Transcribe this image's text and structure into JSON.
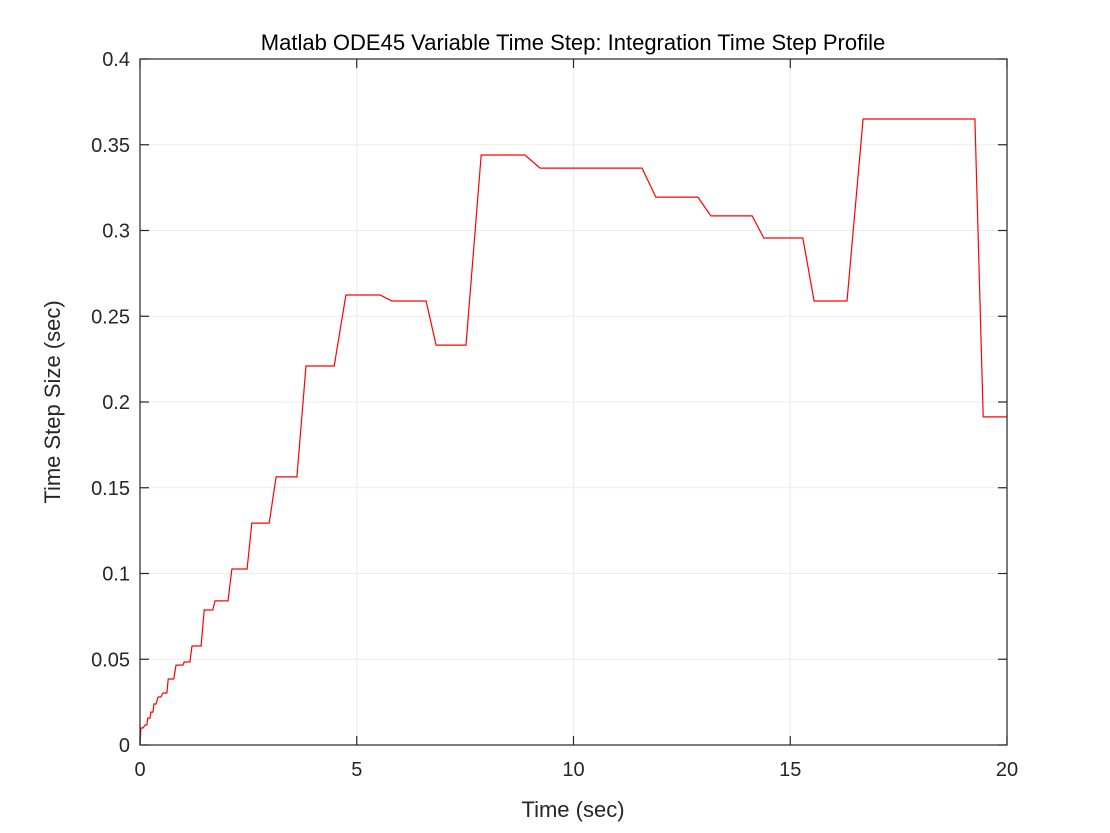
{
  "chart_data": {
    "type": "line",
    "title": "Matlab ODE45 Variable Time Step:  Integration Time Step Profile",
    "xlabel": "Time (sec)",
    "ylabel": "Time Step Size (sec)",
    "xlim": [
      0,
      20
    ],
    "ylim": [
      0,
      0.4
    ],
    "xticks": [
      0,
      5,
      10,
      15,
      20
    ],
    "xtick_labels": [
      "0",
      "5",
      "10",
      "15",
      "20"
    ],
    "yticks": [
      0,
      0.05,
      0.1,
      0.15,
      0.2,
      0.25,
      0.3,
      0.35,
      0.4
    ],
    "ytick_labels": [
      "0",
      "0.05",
      "0.1",
      "0.15",
      "0.2",
      "0.25",
      "0.3",
      "0.35",
      "0.4"
    ],
    "grid": true,
    "legend": null,
    "series": [
      {
        "name": "Time step size",
        "color": "#ff0000",
        "x": [
          0,
          0.02,
          0.07,
          0.12,
          0.16,
          0.18,
          0.23,
          0.25,
          0.3,
          0.32,
          0.37,
          0.42,
          0.48,
          0.53,
          0.62,
          0.65,
          0.78,
          0.83,
          0.99,
          1.02,
          1.15,
          1.2,
          1.41,
          1.48,
          1.68,
          1.73,
          2.03,
          2.12,
          2.47,
          2.58,
          2.98,
          3.14,
          3.62,
          3.83,
          4.48,
          4.75,
          5.54,
          5.81,
          6.6,
          6.83,
          7.52,
          7.87,
          8.88,
          9.23,
          11.58,
          11.9,
          12.87,
          13.17,
          14.12,
          14.39,
          15.29,
          15.55,
          16.31,
          16.68,
          19.26,
          19.45,
          20.0
        ],
        "y": [
          0,
          0.0099,
          0.0099,
          0.0117,
          0.0117,
          0.0157,
          0.0157,
          0.0192,
          0.0192,
          0.0239,
          0.0239,
          0.028,
          0.028,
          0.0303,
          0.0303,
          0.0385,
          0.0385,
          0.0466,
          0.0466,
          0.0484,
          0.0484,
          0.0577,
          0.0577,
          0.0787,
          0.0787,
          0.084,
          0.084,
          0.1026,
          0.1026,
          0.1294,
          0.1294,
          0.1563,
          0.1563,
          0.221,
          0.221,
          0.2624,
          0.2624,
          0.2589,
          0.2589,
          0.2332,
          0.2332,
          0.344,
          0.344,
          0.3364,
          0.3364,
          0.3195,
          0.3195,
          0.3085,
          0.3085,
          0.2956,
          0.2956,
          0.2589,
          0.2589,
          0.365,
          0.365,
          0.1913,
          0.1913
        ]
      }
    ]
  },
  "colors": {
    "background": "#ffffff",
    "axis": "#262626",
    "grid": "#ebebeb",
    "series": "#ff0000"
  }
}
